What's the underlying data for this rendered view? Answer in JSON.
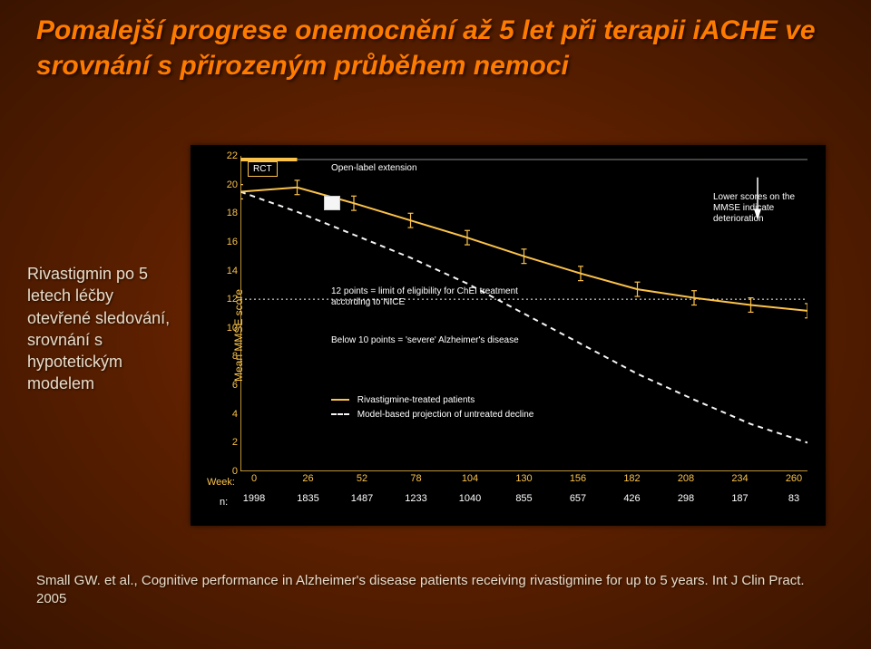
{
  "title": "Pomalejší progrese onemocnění až 5 let při terapii iACHE ve srovnání s přirozeným průběhem nemoci",
  "sidetext": "Rivastigmin po 5 letech léčby otevřené sledování, srovnání s hypotetickým modelem",
  "chart": {
    "type": "line",
    "y_axis_label": "Mean MMSE score",
    "week_label": "Week:",
    "n_label": "n:",
    "ylim": [
      0,
      22
    ],
    "ytick_step": 2,
    "x_weeks": [
      0,
      26,
      52,
      78,
      104,
      130,
      156,
      182,
      208,
      234,
      260
    ],
    "n_values": [
      1998,
      1835,
      1487,
      1233,
      1040,
      855,
      657,
      426,
      298,
      187,
      83
    ],
    "rct_label": "RCT",
    "open_label": "Open-label extension",
    "threshold12_text": "12 points = limit of eligibility for ChEI treatment according to NICE",
    "threshold10_text": "Below 10 points = 'severe' Alzheimer's disease",
    "arrow_text": "Lower scores on the MMSE indicate deterioration",
    "legend_treated": "Rivastigmine-treated patients",
    "legend_model": "Model-based projection of untreated decline",
    "colors": {
      "axis": "#fbc24a",
      "treated_line": "#fbc24a",
      "model_line": "#f5f5f5",
      "threshold": "#ffffff",
      "rct_fill": "#fbc24a",
      "marker_box": "#f5f5f5",
      "background": "#000000"
    },
    "model_series": [
      {
        "x": 0,
        "y": 19.5
      },
      {
        "x": 26,
        "y": 18.1
      },
      {
        "x": 52,
        "y": 16.5
      },
      {
        "x": 78,
        "y": 14.9
      },
      {
        "x": 104,
        "y": 13.1
      },
      {
        "x": 130,
        "y": 11.0
      },
      {
        "x": 156,
        "y": 8.9
      },
      {
        "x": 182,
        "y": 6.8
      },
      {
        "x": 208,
        "y": 5.0
      },
      {
        "x": 234,
        "y": 3.3
      },
      {
        "x": 260,
        "y": 2.0
      }
    ],
    "treated_series": [
      {
        "x": 0,
        "y": 19.5
      },
      {
        "x": 26,
        "y": 19.8
      },
      {
        "x": 52,
        "y": 18.7
      },
      {
        "x": 78,
        "y": 17.5
      },
      {
        "x": 104,
        "y": 16.3
      },
      {
        "x": 130,
        "y": 15.0
      },
      {
        "x": 156,
        "y": 13.8
      },
      {
        "x": 182,
        "y": 12.7
      },
      {
        "x": 208,
        "y": 12.1
      },
      {
        "x": 234,
        "y": 11.6
      },
      {
        "x": 260,
        "y": 11.2
      }
    ],
    "line_width": 2,
    "err_bar_half": 0.5
  },
  "citation": "Small GW. et al., Cognitive performance in Alzheimer's disease patients receiving rivastigmine for up to 5 years. Int J Clin Pract. 2005"
}
